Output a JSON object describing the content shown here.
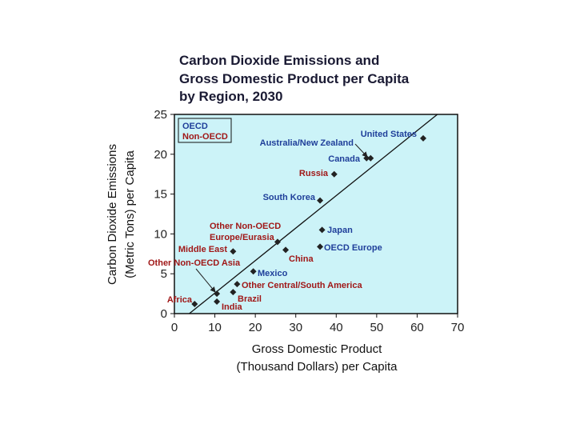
{
  "chart_data": {
    "type": "scatter",
    "title": [
      "Carbon Dioxide Emissions and",
      "Gross Domestic Product per Capita",
      "by Region, 2030"
    ],
    "xlabel": [
      "Gross Domestic Product",
      "(Thousand Dollars) per Capita"
    ],
    "ylabel": [
      "Carbon Dioxide Emissions",
      "(Metric Tons) per Capita"
    ],
    "xlim": [
      0,
      70
    ],
    "ylim": [
      0,
      25
    ],
    "xticks": [
      0,
      10,
      20,
      30,
      40,
      50,
      60,
      70
    ],
    "yticks": [
      0,
      5,
      10,
      15,
      20,
      25
    ],
    "grid": false,
    "legend": {
      "placement": "top-left",
      "entries": [
        {
          "name": "OECD",
          "color": "#1f3f9a"
        },
        {
          "name": "Non-OECD",
          "color": "#a01818"
        }
      ]
    },
    "trend_line": {
      "x": [
        0,
        65
      ],
      "y": [
        -1.5,
        25
      ]
    },
    "points": [
      {
        "label": "United States",
        "group": "OECD",
        "x": 61.5,
        "y": 22
      },
      {
        "label": "Australia/New Zealand",
        "group": "OECD",
        "x": 48.5,
        "y": 19.5
      },
      {
        "label": "Canada",
        "group": "OECD",
        "x": 47.5,
        "y": 19.5
      },
      {
        "label": "Russia",
        "group": "Non-OECD",
        "x": 39.5,
        "y": 17.5
      },
      {
        "label": "South Korea",
        "group": "OECD",
        "x": 36,
        "y": 14.2
      },
      {
        "label": "Japan",
        "group": "OECD",
        "x": 36.5,
        "y": 10.5
      },
      {
        "label": "OECD Europe",
        "group": "OECD",
        "x": 36,
        "y": 8.4
      },
      {
        "label": "Other Non-OECD Europe/Eurasia",
        "group": "Non-OECD",
        "x": 25.5,
        "y": 9
      },
      {
        "label": "China",
        "group": "Non-OECD",
        "x": 27.5,
        "y": 8
      },
      {
        "label": "Middle East",
        "group": "Non-OECD",
        "x": 14.5,
        "y": 7.8
      },
      {
        "label": "Mexico",
        "group": "OECD",
        "x": 19.5,
        "y": 5.3
      },
      {
        "label": "Other Central/South America",
        "group": "Non-OECD",
        "x": 15.5,
        "y": 3.7
      },
      {
        "label": "Brazil",
        "group": "Non-OECD",
        "x": 14.5,
        "y": 2.7
      },
      {
        "label": "Other Non-OECD Asia",
        "group": "Non-OECD",
        "x": 10.5,
        "y": 2.5
      },
      {
        "label": "India",
        "group": "Non-OECD",
        "x": 10.5,
        "y": 1.5
      },
      {
        "label": "Africa",
        "group": "Non-OECD",
        "x": 5,
        "y": 1.2
      }
    ],
    "colors": {
      "plot_bg": "#ccf3f8",
      "frame": "#111111",
      "marker": "#222222"
    }
  }
}
